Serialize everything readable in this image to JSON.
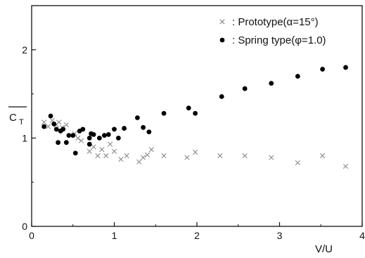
{
  "chart_data": {
    "type": "scatter",
    "title": "",
    "xlabel": "V/U",
    "ylabel_main": "C",
    "ylabel_sub": "T",
    "xlim": [
      0,
      4
    ],
    "ylim": [
      0,
      2.5
    ],
    "xticks": [
      0,
      1,
      2,
      3,
      4
    ],
    "yticks": [
      0,
      1,
      2
    ],
    "xtick_labels": [
      "0",
      "1",
      "2",
      "3",
      "4"
    ],
    "ytick_labels": [
      "0",
      "1",
      "2"
    ],
    "grid": false,
    "legend_position": "top-right",
    "series": [
      {
        "name": ": Prototype(α=15°)",
        "marker": "cross",
        "color": "#8a8a8a",
        "x": [
          0.15,
          0.2,
          0.25,
          0.3,
          0.33,
          0.37,
          0.42,
          0.47,
          0.52,
          0.56,
          0.6,
          0.7,
          0.75,
          0.8,
          0.85,
          0.9,
          0.95,
          1.0,
          1.08,
          1.15,
          1.3,
          1.35,
          1.4,
          1.45,
          1.6,
          1.88,
          1.98,
          2.28,
          2.58,
          2.9,
          3.22,
          3.52,
          3.8
        ],
        "y": [
          1.18,
          1.13,
          1.2,
          1.15,
          1.18,
          1.12,
          1.15,
          1.03,
          1.05,
          1.0,
          0.97,
          0.85,
          0.9,
          0.8,
          0.87,
          0.8,
          0.93,
          0.85,
          0.76,
          0.8,
          0.73,
          0.78,
          0.81,
          0.87,
          0.8,
          0.78,
          0.84,
          0.8,
          0.8,
          0.78,
          0.72,
          0.8,
          0.68
        ]
      },
      {
        "name": ": Spring type(φ=1.0)",
        "marker": "dot",
        "color": "#000000",
        "x": [
          0.15,
          0.23,
          0.27,
          0.3,
          0.32,
          0.35,
          0.38,
          0.42,
          0.45,
          0.5,
          0.53,
          0.58,
          0.62,
          0.7,
          0.72,
          0.7,
          0.75,
          0.82,
          0.88,
          0.93,
          1.0,
          1.05,
          1.12,
          1.28,
          1.35,
          1.42,
          1.6,
          1.9,
          1.98,
          2.3,
          2.58,
          2.9,
          3.22,
          3.52,
          3.8
        ],
        "y": [
          1.13,
          1.25,
          1.16,
          1.1,
          0.95,
          1.08,
          1.1,
          0.95,
          1.03,
          1.03,
          0.83,
          1.08,
          1.1,
          1.0,
          1.05,
          0.93,
          1.04,
          1.0,
          1.03,
          1.04,
          1.1,
          1.0,
          1.11,
          1.23,
          1.12,
          1.07,
          1.28,
          1.34,
          1.28,
          1.47,
          1.56,
          1.62,
          1.7,
          1.78,
          1.8
        ]
      }
    ]
  }
}
